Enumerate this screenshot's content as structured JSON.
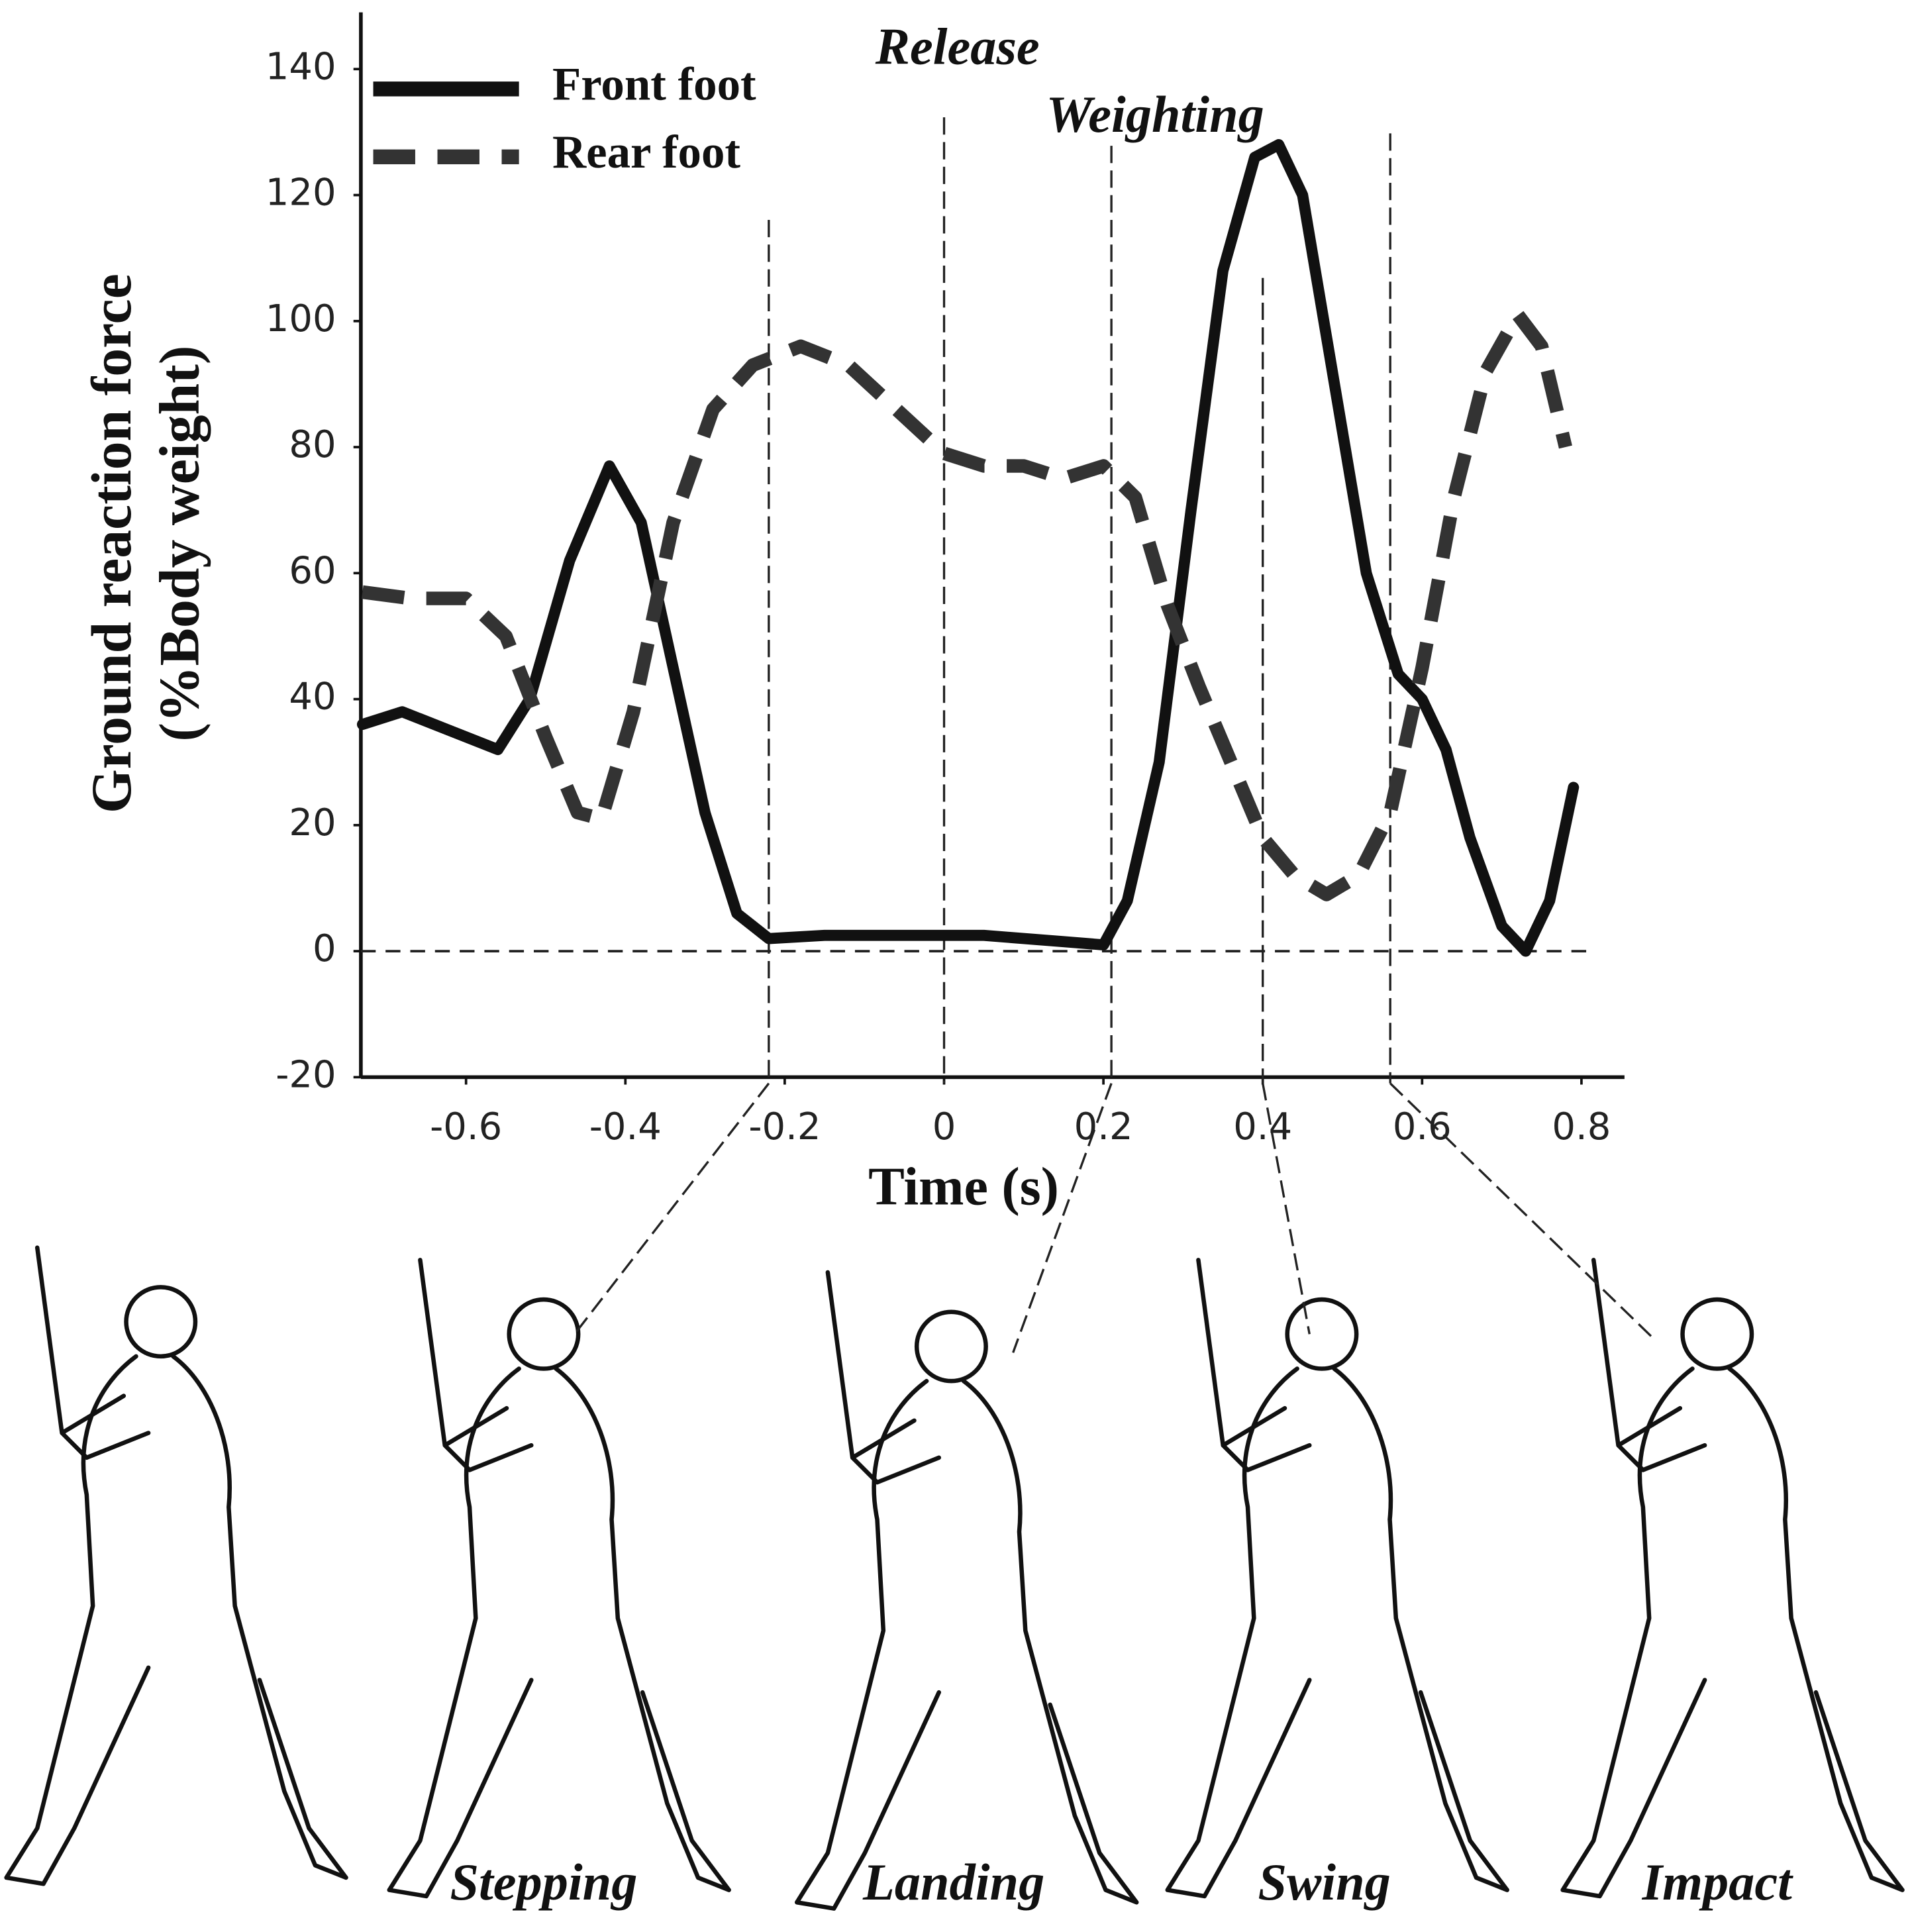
{
  "chart_data": {
    "type": "line",
    "y_label_lines": [
      "Ground reaction force",
      "(%Body weight)"
    ],
    "x_label": "Time (s)",
    "xlim": [
      -0.732,
      0.854
    ],
    "ylim": [
      -20,
      149
    ],
    "xticks": [
      -0.6,
      -0.4,
      -0.2,
      0,
      0.2,
      0.4,
      0.6,
      0.8
    ],
    "yticks": [
      -20,
      0,
      20,
      40,
      60,
      80,
      100,
      120,
      140
    ],
    "hlines": [
      0
    ],
    "series": [
      {
        "name": "Front foot",
        "color": "#111111",
        "dash": "solid",
        "x": [
          -0.73,
          -0.68,
          -0.62,
          -0.56,
          -0.52,
          -0.47,
          -0.42,
          -0.38,
          -0.34,
          -0.3,
          -0.26,
          -0.22,
          -0.15,
          -0.05,
          0.05,
          0.15,
          0.2,
          0.23,
          0.27,
          0.31,
          0.35,
          0.39,
          0.42,
          0.45,
          0.49,
          0.53,
          0.57,
          0.6,
          0.63,
          0.66,
          0.7,
          0.73,
          0.76,
          0.79
        ],
        "values": [
          36,
          38,
          35,
          32,
          40,
          62,
          77,
          68,
          45,
          22,
          6,
          2,
          2.5,
          2.5,
          2.5,
          1.5,
          1,
          8,
          30,
          70,
          108,
          126,
          128,
          120,
          90,
          60,
          44,
          40,
          32,
          18,
          4,
          0,
          8,
          26
        ]
      },
      {
        "name": "Rear foot",
        "color": "#333333",
        "dash": "dashed",
        "x": [
          -0.73,
          -0.67,
          -0.6,
          -0.55,
          -0.5,
          -0.46,
          -0.43,
          -0.39,
          -0.34,
          -0.29,
          -0.24,
          -0.18,
          -0.12,
          -0.06,
          0,
          0.05,
          0.1,
          0.15,
          0.2,
          0.24,
          0.28,
          0.32,
          0.36,
          0.4,
          0.44,
          0.48,
          0.52,
          0.56,
          0.6,
          0.64,
          0.68,
          0.72,
          0.75,
          0.78
        ],
        "values": [
          57,
          56,
          56,
          50,
          34,
          22,
          21,
          38,
          68,
          86,
          93,
          96,
          93,
          86,
          79,
          77,
          77,
          75,
          77,
          72,
          55,
          42,
          30,
          18,
          12,
          9,
          12,
          22,
          45,
          72,
          92,
          101,
          96,
          80
        ]
      }
    ],
    "markers": [
      {
        "x": -0.22,
        "label": "Stepping"
      },
      {
        "x": 0,
        "label": "Release"
      },
      {
        "x": 0.21,
        "label": "Landing"
      },
      {
        "x": 0.4,
        "label": "Swing"
      },
      {
        "x": 0.56,
        "label": "Impact"
      }
    ],
    "annotations": [
      "Weighting"
    ]
  }
}
